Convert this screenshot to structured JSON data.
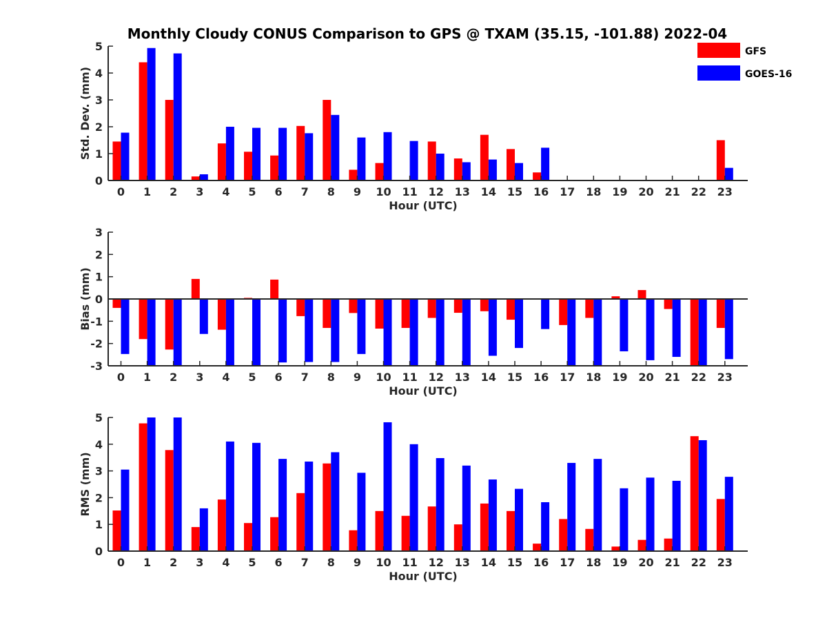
{
  "title": "Monthly Cloudy CONUS Comparison to GPS @ TXAM (35.15, -101.88) 2022-04",
  "legend": {
    "placement": "top-right",
    "items": [
      {
        "name": "GFS",
        "color": "#ff0000"
      },
      {
        "name": "GOES-16",
        "color": "#0000ff"
      }
    ]
  },
  "chart_data": [
    {
      "type": "bar",
      "xlabel": "Hour (UTC)",
      "ylabel": "Std. Dev. (mm)",
      "ylim": [
        0,
        5
      ],
      "yticks": [
        "0",
        "1",
        "2",
        "3",
        "4",
        "5"
      ],
      "categories": [
        "0",
        "1",
        "2",
        "3",
        "4",
        "5",
        "6",
        "7",
        "8",
        "9",
        "10",
        "11",
        "12",
        "13",
        "14",
        "15",
        "16",
        "17",
        "18",
        "19",
        "20",
        "21",
        "22",
        "23"
      ],
      "series": [
        {
          "name": "GFS",
          "color": "#ff0000",
          "values": [
            1.45,
            4.4,
            3.0,
            0.15,
            1.38,
            1.07,
            0.93,
            2.03,
            3.0,
            0.4,
            0.65,
            0,
            1.45,
            0.82,
            1.7,
            1.17,
            0.3,
            0,
            0,
            0,
            0,
            0,
            0,
            1.5
          ]
        },
        {
          "name": "GOES-16",
          "color": "#0000ff",
          "values": [
            1.78,
            4.93,
            4.73,
            0.23,
            2.0,
            1.96,
            1.96,
            1.76,
            2.44,
            1.6,
            1.8,
            1.47,
            1.0,
            0.68,
            0.78,
            0.65,
            1.22,
            0,
            0,
            0,
            0,
            0,
            0,
            0.47
          ]
        }
      ]
    },
    {
      "type": "bar",
      "xlabel": "Hour (UTC)",
      "ylabel": "Bias (mm)",
      "ylim": [
        -3,
        3
      ],
      "yticks": [
        "-3",
        "-2",
        "-1",
        "0",
        "1",
        "2",
        "3"
      ],
      "zero_line": true,
      "categories": [
        "0",
        "1",
        "2",
        "3",
        "4",
        "5",
        "6",
        "7",
        "8",
        "9",
        "10",
        "11",
        "12",
        "13",
        "14",
        "15",
        "16",
        "17",
        "18",
        "19",
        "20",
        "21",
        "22",
        "23"
      ],
      "series": [
        {
          "name": "GFS",
          "color": "#ff0000",
          "values": [
            -0.4,
            -1.8,
            -2.27,
            0.9,
            -1.38,
            0.05,
            0.87,
            -0.77,
            -1.3,
            -0.63,
            -1.33,
            -1.3,
            -0.85,
            -0.62,
            -0.55,
            -0.93,
            0.02,
            -1.17,
            -0.85,
            0.12,
            0.4,
            -0.45,
            -3.0,
            -1.3
          ]
        },
        {
          "name": "GOES-16",
          "color": "#0000ff",
          "values": [
            -2.47,
            -3.0,
            -3.0,
            -1.57,
            -3.0,
            -3.0,
            -2.85,
            -2.83,
            -2.83,
            -2.47,
            -3.0,
            -3.0,
            -3.0,
            -3.0,
            -2.55,
            -2.2,
            -1.35,
            -3.0,
            -3.0,
            -2.35,
            -2.75,
            -2.6,
            -3.0,
            -2.7
          ]
        }
      ]
    },
    {
      "type": "bar",
      "xlabel": "Hour (UTC)",
      "ylabel": "RMS (mm)",
      "ylim": [
        0,
        5
      ],
      "yticks": [
        "0",
        "1",
        "2",
        "3",
        "4",
        "5"
      ],
      "categories": [
        "0",
        "1",
        "2",
        "3",
        "4",
        "5",
        "6",
        "7",
        "8",
        "9",
        "10",
        "11",
        "12",
        "13",
        "14",
        "15",
        "16",
        "17",
        "18",
        "19",
        "20",
        "21",
        "22",
        "23"
      ],
      "series": [
        {
          "name": "GFS",
          "color": "#ff0000",
          "values": [
            1.52,
            4.78,
            3.78,
            0.9,
            1.93,
            1.05,
            1.27,
            2.17,
            3.28,
            0.78,
            1.5,
            1.32,
            1.67,
            1.0,
            1.78,
            1.5,
            0.28,
            1.2,
            0.83,
            0.17,
            0.42,
            0.47,
            4.3,
            1.95
          ]
        },
        {
          "name": "GOES-16",
          "color": "#0000ff",
          "values": [
            3.05,
            5.0,
            5.0,
            1.6,
            4.1,
            4.05,
            3.45,
            3.35,
            3.7,
            2.93,
            4.82,
            4.0,
            3.48,
            3.2,
            2.68,
            2.33,
            1.83,
            3.3,
            3.45,
            2.35,
            2.75,
            2.63,
            4.15,
            2.78
          ]
        }
      ]
    }
  ]
}
